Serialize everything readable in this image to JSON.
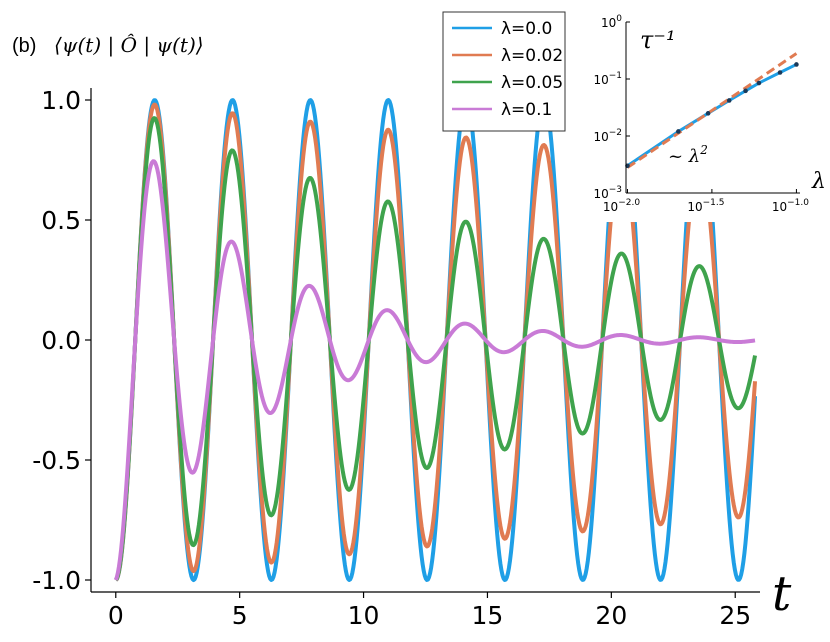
{
  "panel": {
    "label": "(b)",
    "expression": "⟨ψ(t) | Ô | ψ(t)⟩"
  },
  "chart_data": [
    {
      "type": "line",
      "title": "",
      "xlabel": "t",
      "ylabel": "",
      "xlim": [
        -1,
        26
      ],
      "ylim": [
        -1.05,
        1.05
      ],
      "x_ticks": [
        0,
        5,
        10,
        15,
        20,
        25
      ],
      "x_tick_labels": [
        "0",
        "5",
        "10",
        "15",
        "20",
        "25"
      ],
      "y_ticks": [
        -1.0,
        -0.5,
        0.0,
        0.5,
        1.0
      ],
      "y_tick_labels": [
        "-1.0",
        "-0.5",
        "0.0",
        "0.5",
        "1.0"
      ],
      "grid": false,
      "legend_position": "top-center",
      "model": {
        "form": "y = -exp(-gamma * t) * cos(omega * t)",
        "omega": 2.0,
        "t_range": [
          0,
          25.8
        ],
        "samples": 600
      },
      "series": [
        {
          "name": "λ=0.0",
          "gamma": 0.0,
          "color": "#1f9fe6",
          "peaks": [
            1.0,
            1.0,
            1.0,
            1.0,
            1.0,
            1.0
          ]
        },
        {
          "name": "λ=0.02",
          "gamma": 0.012,
          "color": "#e07b52",
          "peaks": [
            1.0,
            0.98,
            0.95,
            0.91,
            0.88,
            0.84
          ]
        },
        {
          "name": "λ=0.05",
          "gamma": 0.05,
          "color": "#3fa34d",
          "peaks": [
            1.0,
            0.87,
            0.73,
            0.57,
            0.45,
            0.35
          ]
        },
        {
          "name": "λ=0.1",
          "gamma": 0.19,
          "color": "#c97bd6",
          "peaks": [
            0.93,
            0.57,
            0.27,
            0.11,
            0.1,
            0.05
          ]
        }
      ]
    },
    {
      "type": "line",
      "title": "",
      "ylabel": "τ⁻¹",
      "xlabel": "λ",
      "log_x": true,
      "log_y": true,
      "xlim": [
        0.0098,
        0.105
      ],
      "ylim": [
        0.001,
        1.0
      ],
      "x_tick_labels": [
        {
          "base": "10",
          "exp": "−2.0"
        },
        {
          "base": "10",
          "exp": "−1.5"
        },
        {
          "base": "10",
          "exp": "−1.0"
        }
      ],
      "x_tick_values": [
        0.01,
        0.0316,
        0.1
      ],
      "y_tick_labels": [
        {
          "base": "10",
          "exp": "0"
        },
        {
          "base": "10",
          "exp": "−1"
        },
        {
          "base": "10",
          "exp": "−2"
        },
        {
          "base": "10",
          "exp": "−3"
        }
      ],
      "y_tick_values": [
        1.0,
        0.1,
        0.01,
        0.001
      ],
      "annotation": {
        "text_prefix": "~ λ",
        "text_exp": "2"
      },
      "series": [
        {
          "name": "",
          "color": "#1f9fe6",
          "style": "solid",
          "x": [
            0.01,
            0.02,
            0.03,
            0.04,
            0.05,
            0.06,
            0.08,
            0.1
          ],
          "y": [
            0.003,
            0.012,
            0.025,
            0.042,
            0.062,
            0.085,
            0.13,
            0.18
          ]
        },
        {
          "name": "",
          "color": "#e07b52",
          "style": "dashed",
          "x": [
            0.01,
            0.1
          ],
          "y": [
            0.0028,
            0.28
          ]
        }
      ],
      "points": {
        "x": [
          0.01,
          0.02,
          0.03,
          0.04,
          0.05,
          0.06,
          0.08,
          0.1
        ],
        "y": [
          0.003,
          0.012,
          0.025,
          0.042,
          0.062,
          0.085,
          0.13,
          0.18
        ]
      }
    }
  ]
}
